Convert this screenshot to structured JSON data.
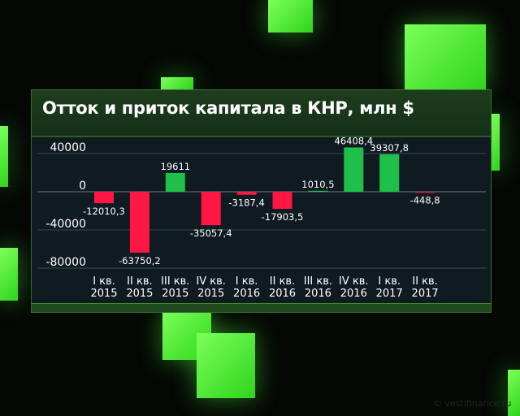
{
  "chart_data": {
    "type": "bar",
    "title": "Отток и приток капитала в КНР, млн $",
    "categories": [
      [
        "I кв.",
        "2015"
      ],
      [
        "II кв.",
        "2015"
      ],
      [
        "III кв.",
        "2015"
      ],
      [
        "IV кв.",
        "2015"
      ],
      [
        "I кв.",
        "2016"
      ],
      [
        "II кв.",
        "2016"
      ],
      [
        "III кв.",
        "2016"
      ],
      [
        "IV кв.",
        "2016"
      ],
      [
        "I кв.",
        "2017"
      ],
      [
        "II кв.",
        "2017"
      ]
    ],
    "values": [
      -12010.3,
      -63750.2,
      19611,
      -35057.4,
      -3187.4,
      -17903.5,
      1010.5,
      46408.4,
      39307.8,
      -448.8
    ],
    "data_labels": [
      "-12010,3",
      "-63750,2",
      "19611",
      "-35057,4",
      "-3187,4",
      "-17903,5",
      "1010,5",
      "46408,4",
      "39307,8",
      "-448,8"
    ],
    "yticks": [
      40000,
      0,
      -40000,
      -80000
    ],
    "ytick_labels": [
      "40000",
      "0",
      "-40000",
      "-80000"
    ],
    "ylim": [
      -80000,
      40000
    ],
    "grid": true,
    "colors": {
      "positive": "#1ec04a",
      "negative": "#ff1744"
    }
  },
  "watermark": "© vestifinance.ru"
}
